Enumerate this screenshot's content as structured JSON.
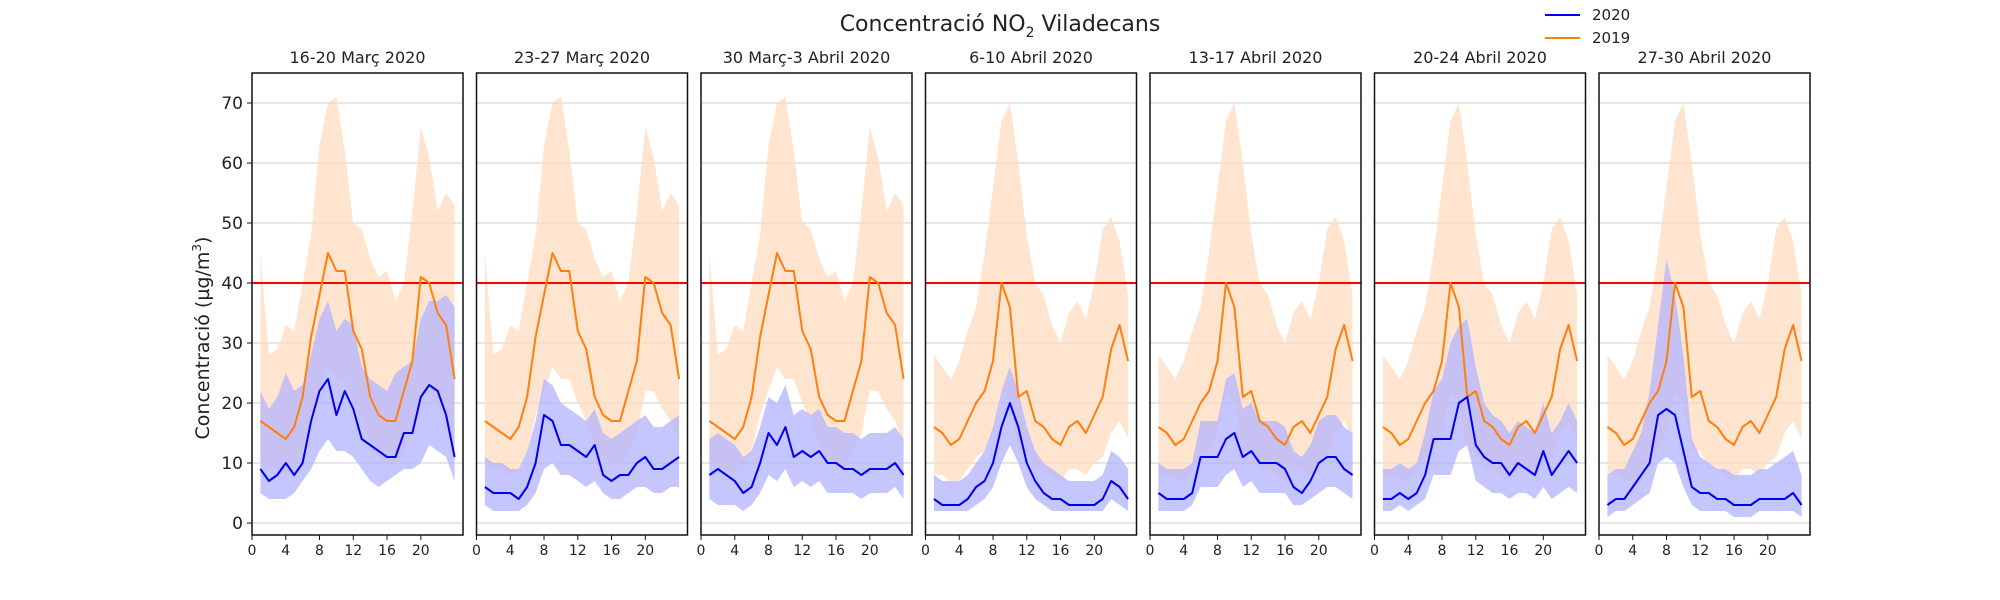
{
  "title_main": "Concentració NO",
  "title_sub": "2",
  "title_rest": " Viladecans",
  "ylabel_main": "Concentració (µg/m",
  "ylabel_sup": "3",
  "ylabel_end": ")",
  "legend": [
    {
      "label": "2020",
      "color": "#0000ee"
    },
    {
      "label": "2019",
      "color": "#ff7f0e"
    }
  ],
  "colors": {
    "series_2020": "#0000ee",
    "band_2020": "#b3b3ff",
    "series_2019": "#ff7f0e",
    "band_2019": "#ffdcbf",
    "limit_line": "#ff0000",
    "grid": "#cccccc"
  },
  "chart_data": {
    "type": "line",
    "x": [
      1,
      2,
      3,
      4,
      5,
      6,
      7,
      8,
      9,
      10,
      11,
      12,
      13,
      14,
      15,
      16,
      17,
      18,
      19,
      20,
      21,
      22,
      23,
      24
    ],
    "xticks": [
      0,
      4,
      8,
      12,
      16,
      20
    ],
    "xlim": [
      0,
      25
    ],
    "yticks": [
      0,
      10,
      20,
      30,
      40,
      50,
      60,
      70
    ],
    "ylim": [
      -2,
      75
    ],
    "limit_value": 40,
    "grid": "horizontal",
    "legend_position": "top-right",
    "panels": [
      {
        "title": "16-20 Març 2020",
        "series_2020": [
          9,
          7,
          8,
          10,
          8,
          10,
          17,
          22,
          24,
          18,
          22,
          19,
          14,
          13,
          12,
          11,
          11,
          15,
          15,
          21,
          23,
          22,
          18,
          11
        ],
        "band_2020_low": [
          5,
          4,
          4,
          4,
          5,
          7,
          9,
          12,
          14,
          12,
          12,
          11,
          9,
          7,
          6,
          7,
          8,
          9,
          9,
          10,
          13,
          12,
          11,
          7
        ],
        "band_2020_high": [
          22,
          19,
          21,
          25,
          22,
          23,
          28,
          34,
          37,
          32,
          34,
          33,
          26,
          24,
          23,
          22,
          25,
          26,
          27,
          34,
          37,
          37,
          38,
          36
        ],
        "series_2019": [
          17,
          16,
          15,
          14,
          16,
          21,
          31,
          38,
          45,
          42,
          42,
          32,
          29,
          21,
          18,
          17,
          17,
          22,
          27,
          41,
          40,
          35,
          33,
          24
        ],
        "band_2019_low": [
          10,
          9,
          9,
          8,
          9,
          12,
          18,
          22,
          26,
          24,
          24,
          20,
          17,
          13,
          11,
          10,
          10,
          12,
          15,
          22,
          22,
          19,
          17,
          13
        ],
        "band_2019_high": [
          45,
          28,
          29,
          33,
          32,
          40,
          48,
          63,
          70,
          71,
          62,
          50,
          49,
          44,
          41,
          42,
          37,
          40,
          52,
          66,
          61,
          52,
          55,
          53
        ]
      },
      {
        "title": "23-27 Març 2020",
        "series_2020": [
          6,
          5,
          5,
          5,
          4,
          6,
          10,
          18,
          17,
          13,
          13,
          12,
          11,
          13,
          8,
          7,
          8,
          8,
          10,
          11,
          9,
          9,
          10,
          11
        ],
        "band_2020_low": [
          3,
          2,
          2,
          2,
          2,
          3,
          5,
          9,
          10,
          8,
          8,
          7,
          6,
          7,
          5,
          4,
          4,
          5,
          6,
          6,
          5,
          5,
          6,
          6
        ],
        "band_2020_high": [
          11,
          10,
          10,
          9,
          9,
          12,
          17,
          24,
          23,
          20,
          19,
          18,
          17,
          19,
          15,
          14,
          15,
          16,
          17,
          18,
          16,
          16,
          17,
          18
        ],
        "series_2019": [
          17,
          16,
          15,
          14,
          16,
          21,
          31,
          38,
          45,
          42,
          42,
          32,
          29,
          21,
          18,
          17,
          17,
          22,
          27,
          41,
          40,
          35,
          33,
          24
        ],
        "band_2019_low": [
          10,
          9,
          9,
          8,
          9,
          12,
          18,
          22,
          26,
          24,
          24,
          20,
          17,
          13,
          11,
          10,
          10,
          12,
          15,
          22,
          22,
          19,
          17,
          13
        ],
        "band_2019_high": [
          45,
          28,
          29,
          33,
          32,
          40,
          48,
          63,
          70,
          71,
          62,
          50,
          49,
          44,
          41,
          42,
          37,
          40,
          52,
          66,
          61,
          52,
          55,
          53
        ]
      },
      {
        "title": "30 Març-3 Abril 2020",
        "series_2020": [
          8,
          9,
          8,
          7,
          5,
          6,
          10,
          15,
          13,
          16,
          11,
          12,
          11,
          12,
          10,
          10,
          9,
          9,
          8,
          9,
          9,
          9,
          10,
          8
        ],
        "band_2020_low": [
          4,
          3,
          3,
          3,
          2,
          3,
          5,
          8,
          7,
          9,
          6,
          7,
          6,
          7,
          5,
          5,
          5,
          5,
          4,
          5,
          5,
          5,
          6,
          4
        ],
        "band_2020_high": [
          14,
          15,
          14,
          13,
          11,
          12,
          16,
          21,
          20,
          23,
          18,
          19,
          18,
          19,
          16,
          16,
          15,
          15,
          14,
          15,
          15,
          15,
          16,
          14
        ],
        "series_2019": [
          17,
          16,
          15,
          14,
          16,
          21,
          31,
          38,
          45,
          42,
          42,
          32,
          29,
          21,
          18,
          17,
          17,
          22,
          27,
          41,
          40,
          35,
          33,
          24
        ],
        "band_2019_low": [
          10,
          9,
          9,
          8,
          9,
          12,
          18,
          22,
          26,
          24,
          24,
          20,
          17,
          13,
          11,
          10,
          10,
          12,
          15,
          22,
          22,
          19,
          17,
          13
        ],
        "band_2019_high": [
          45,
          28,
          29,
          33,
          32,
          40,
          48,
          63,
          70,
          71,
          62,
          50,
          49,
          44,
          41,
          42,
          37,
          40,
          52,
          66,
          61,
          52,
          55,
          53
        ]
      },
      {
        "title": "6-10 Abril 2020",
        "series_2020": [
          4,
          3,
          3,
          3,
          4,
          6,
          7,
          10,
          16,
          20,
          16,
          10,
          7,
          5,
          4,
          4,
          3,
          3,
          3,
          3,
          4,
          7,
          6,
          4
        ],
        "band_2020_low": [
          2,
          2,
          2,
          2,
          2,
          3,
          4,
          6,
          10,
          13,
          10,
          6,
          4,
          3,
          2,
          2,
          2,
          2,
          2,
          2,
          2,
          4,
          3,
          2
        ],
        "band_2020_high": [
          8,
          7,
          7,
          7,
          8,
          10,
          12,
          16,
          22,
          26,
          22,
          16,
          12,
          10,
          9,
          8,
          7,
          7,
          7,
          7,
          8,
          12,
          11,
          9
        ],
        "series_2019": [
          16,
          15,
          13,
          14,
          17,
          20,
          22,
          27,
          40,
          36,
          21,
          22,
          17,
          16,
          14,
          13,
          16,
          17,
          15,
          18,
          21,
          29,
          33,
          27
        ],
        "band_2019_low": [
          8,
          8,
          7,
          7,
          9,
          11,
          12,
          15,
          22,
          20,
          12,
          12,
          9,
          9,
          8,
          7,
          9,
          9,
          8,
          10,
          11,
          15,
          17,
          14
        ],
        "band_2019_high": [
          28,
          26,
          24,
          27,
          32,
          36,
          45,
          56,
          67,
          70,
          60,
          48,
          40,
          38,
          33,
          30,
          35,
          37,
          34,
          40,
          49,
          51,
          47,
          38
        ]
      },
      {
        "title": "13-17 Abril 2020",
        "series_2020": [
          5,
          4,
          4,
          4,
          5,
          11,
          11,
          11,
          14,
          15,
          11,
          12,
          10,
          10,
          10,
          9,
          6,
          5,
          7,
          10,
          11,
          11,
          9,
          8
        ],
        "band_2020_low": [
          2,
          2,
          2,
          2,
          3,
          6,
          6,
          6,
          8,
          9,
          6,
          7,
          5,
          5,
          5,
          5,
          3,
          3,
          4,
          5,
          6,
          6,
          5,
          4
        ],
        "band_2020_high": [
          10,
          9,
          9,
          9,
          10,
          17,
          17,
          17,
          24,
          25,
          19,
          20,
          17,
          17,
          17,
          16,
          12,
          11,
          13,
          17,
          18,
          18,
          16,
          15
        ],
        "series_2019": [
          16,
          15,
          13,
          14,
          17,
          20,
          22,
          27,
          40,
          36,
          21,
          22,
          17,
          16,
          14,
          13,
          16,
          17,
          15,
          18,
          21,
          29,
          33,
          27
        ],
        "band_2019_low": [
          8,
          8,
          7,
          7,
          9,
          11,
          12,
          15,
          22,
          20,
          12,
          12,
          9,
          9,
          8,
          7,
          9,
          9,
          8,
          10,
          11,
          15,
          17,
          14
        ],
        "band_2019_high": [
          28,
          26,
          24,
          27,
          32,
          36,
          45,
          56,
          67,
          70,
          60,
          48,
          40,
          38,
          33,
          30,
          35,
          37,
          34,
          40,
          49,
          51,
          47,
          38
        ]
      },
      {
        "title": "20-24 Abril 2020",
        "series_2020": [
          4,
          4,
          5,
          4,
          5,
          8,
          14,
          14,
          14,
          20,
          21,
          13,
          11,
          10,
          10,
          8,
          10,
          9,
          8,
          12,
          8,
          10,
          12,
          10
        ],
        "band_2020_low": [
          2,
          2,
          3,
          2,
          3,
          4,
          8,
          8,
          8,
          12,
          13,
          7,
          6,
          5,
          5,
          4,
          5,
          5,
          4,
          6,
          4,
          5,
          6,
          5
        ],
        "band_2020_high": [
          9,
          9,
          10,
          9,
          10,
          15,
          22,
          24,
          30,
          33,
          34,
          26,
          20,
          18,
          17,
          15,
          17,
          16,
          15,
          20,
          15,
          17,
          20,
          17
        ],
        "series_2019": [
          16,
          15,
          13,
          14,
          17,
          20,
          22,
          27,
          40,
          36,
          21,
          22,
          17,
          16,
          14,
          13,
          16,
          17,
          15,
          18,
          21,
          29,
          33,
          27
        ],
        "band_2019_low": [
          8,
          8,
          7,
          7,
          9,
          11,
          12,
          15,
          22,
          20,
          12,
          12,
          9,
          9,
          8,
          7,
          9,
          9,
          8,
          10,
          11,
          15,
          17,
          14
        ],
        "band_2019_high": [
          28,
          26,
          24,
          27,
          32,
          36,
          45,
          56,
          67,
          70,
          60,
          48,
          40,
          38,
          33,
          30,
          35,
          37,
          34,
          40,
          49,
          51,
          47,
          38
        ]
      },
      {
        "title": "27-30 Abril 2020",
        "series_2020": [
          3,
          4,
          4,
          6,
          8,
          10,
          18,
          19,
          18,
          12,
          6,
          5,
          5,
          4,
          4,
          3,
          3,
          3,
          4,
          4,
          4,
          4,
          5,
          3
        ],
        "band_2020_low": [
          1,
          2,
          2,
          3,
          4,
          5,
          10,
          11,
          10,
          6,
          3,
          2,
          2,
          2,
          2,
          1,
          1,
          1,
          2,
          2,
          2,
          2,
          2,
          1
        ],
        "band_2020_high": [
          8,
          9,
          9,
          12,
          15,
          22,
          33,
          44,
          38,
          28,
          14,
          11,
          10,
          9,
          9,
          8,
          8,
          8,
          9,
          9,
          10,
          11,
          12,
          8
        ],
        "series_2019": [
          16,
          15,
          13,
          14,
          17,
          20,
          22,
          27,
          40,
          36,
          21,
          22,
          17,
          16,
          14,
          13,
          16,
          17,
          15,
          18,
          21,
          29,
          33,
          27
        ],
        "band_2019_low": [
          8,
          8,
          7,
          7,
          9,
          11,
          12,
          15,
          22,
          20,
          12,
          12,
          9,
          9,
          8,
          7,
          9,
          9,
          8,
          10,
          11,
          15,
          17,
          14
        ],
        "band_2019_high": [
          28,
          26,
          24,
          27,
          32,
          36,
          45,
          56,
          67,
          70,
          60,
          48,
          40,
          38,
          33,
          30,
          35,
          37,
          34,
          40,
          49,
          51,
          47,
          38
        ]
      }
    ]
  }
}
